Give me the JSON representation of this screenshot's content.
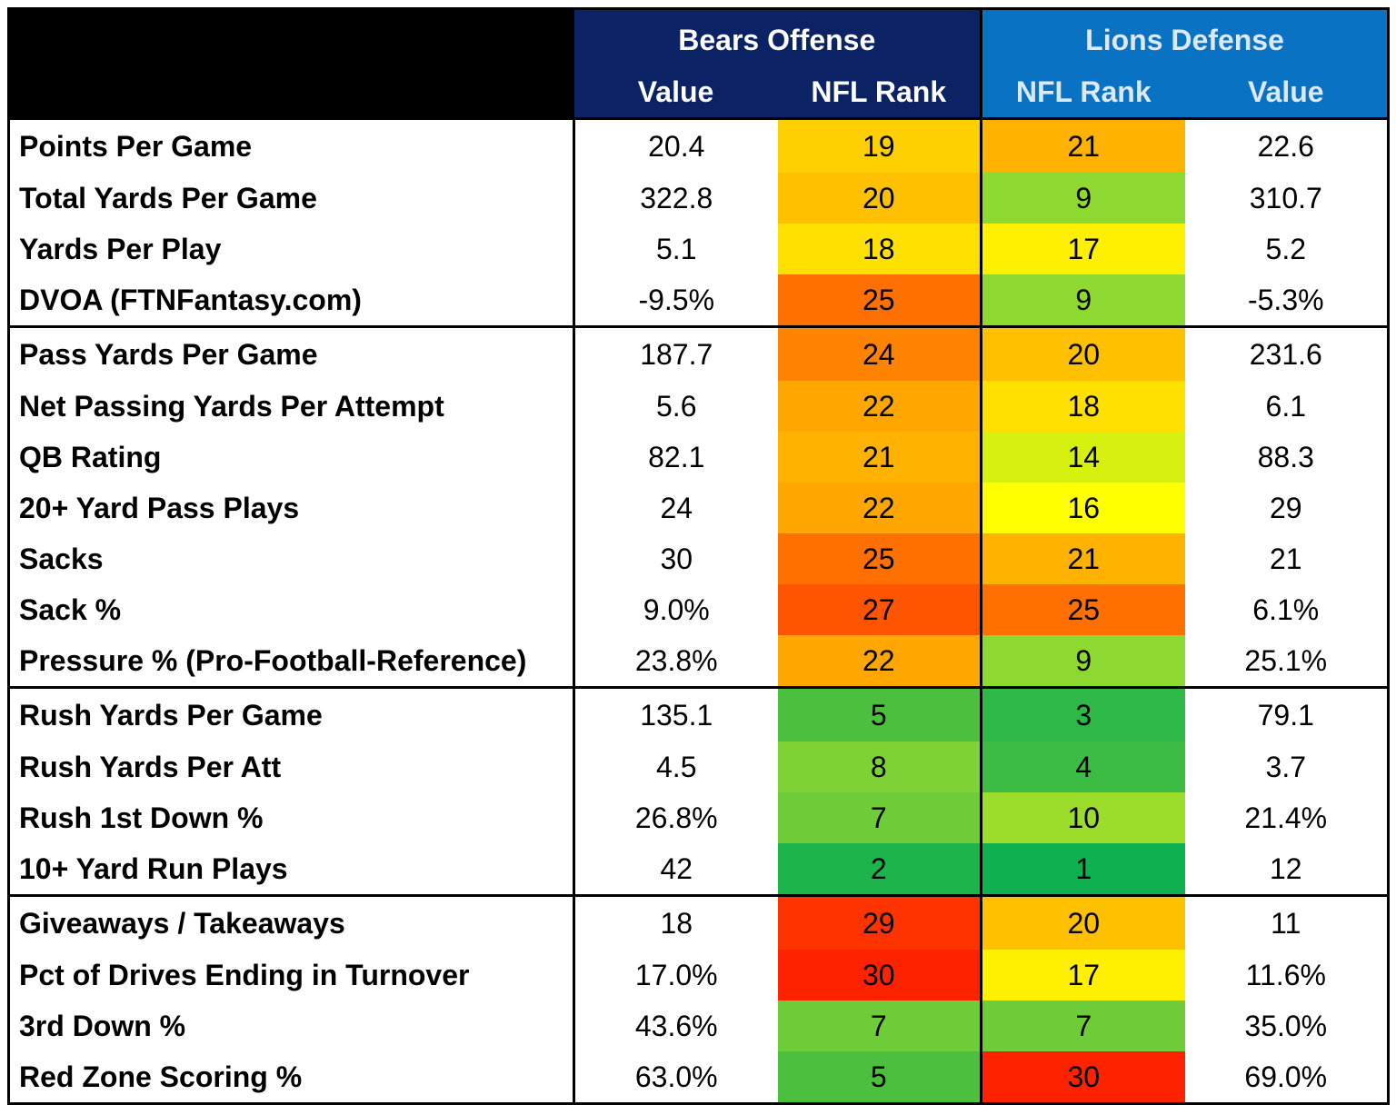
{
  "header": {
    "bears_title": "Bears Offense",
    "lions_title": "Lions Defense",
    "bears_value_label": "Value",
    "bears_rank_label": "NFL Rank",
    "lions_rank_label": "NFL Rank",
    "lions_value_label": "Value"
  },
  "colors": {
    "bears_header": "#0b2265",
    "lions_header": "#0a72c3",
    "corner": "#000000"
  },
  "rank_scale": "1 = green, 16 = yellow, 32 = red",
  "groups": [
    {
      "rows": [
        {
          "label": "Points Per Game",
          "bears_value": "20.4",
          "bears_rank": "19",
          "lions_rank": "21",
          "lions_value": "22.6"
        },
        {
          "label": "Total Yards Per Game",
          "bears_value": "322.8",
          "bears_rank": "20",
          "lions_rank": "9",
          "lions_value": "310.7"
        },
        {
          "label": "Yards Per Play",
          "bears_value": "5.1",
          "bears_rank": "18",
          "lions_rank": "17",
          "lions_value": "5.2"
        },
        {
          "label": "DVOA (FTNFantasy.com)",
          "bears_value": "-9.5%",
          "bears_rank": "25",
          "lions_rank": "9",
          "lions_value": "-5.3%"
        }
      ]
    },
    {
      "rows": [
        {
          "label": "Pass Yards Per Game",
          "bears_value": "187.7",
          "bears_rank": "24",
          "lions_rank": "20",
          "lions_value": "231.6"
        },
        {
          "label": "Net Passing Yards Per Attempt",
          "bears_value": "5.6",
          "bears_rank": "22",
          "lions_rank": "18",
          "lions_value": "6.1"
        },
        {
          "label": "QB Rating",
          "bears_value": "82.1",
          "bears_rank": "21",
          "lions_rank": "14",
          "lions_value": "88.3"
        },
        {
          "label": "20+ Yard Pass Plays",
          "bears_value": "24",
          "bears_rank": "22",
          "lions_rank": "16",
          "lions_value": "29"
        },
        {
          "label": "Sacks",
          "bears_value": "30",
          "bears_rank": "25",
          "lions_rank": "21",
          "lions_value": "21"
        },
        {
          "label": "Sack %",
          "bears_value": "9.0%",
          "bears_rank": "27",
          "lions_rank": "25",
          "lions_value": "6.1%"
        },
        {
          "label": "Pressure % (Pro-Football-Reference)",
          "bears_value": "23.8%",
          "bears_rank": "22",
          "lions_rank": "9",
          "lions_value": "25.1%"
        }
      ]
    },
    {
      "rows": [
        {
          "label": "Rush Yards Per Game",
          "bears_value": "135.1",
          "bears_rank": "5",
          "lions_rank": "3",
          "lions_value": "79.1"
        },
        {
          "label": "Rush Yards Per Att",
          "bears_value": "4.5",
          "bears_rank": "8",
          "lions_rank": "4",
          "lions_value": "3.7"
        },
        {
          "label": "Rush 1st Down %",
          "bears_value": "26.8%",
          "bears_rank": "7",
          "lions_rank": "10",
          "lions_value": "21.4%"
        },
        {
          "label": "10+ Yard Run Plays",
          "bears_value": "42",
          "bears_rank": "2",
          "lions_rank": "1",
          "lions_value": "12"
        }
      ]
    },
    {
      "rows": [
        {
          "label": "Giveaways / Takeaways",
          "bears_value": "18",
          "bears_rank": "29",
          "lions_rank": "20",
          "lions_value": "11"
        },
        {
          "label": "Pct of Drives Ending in Turnover",
          "bears_value": "17.0%",
          "bears_rank": "30",
          "lions_rank": "17",
          "lions_value": "11.6%"
        },
        {
          "label": "3rd Down %",
          "bears_value": "43.6%",
          "bears_rank": "7",
          "lions_rank": "7",
          "lions_value": "35.0%"
        },
        {
          "label": "Red Zone Scoring %",
          "bears_value": "63.0%",
          "bears_rank": "5",
          "lions_rank": "30",
          "lions_value": "69.0%"
        }
      ]
    }
  ]
}
